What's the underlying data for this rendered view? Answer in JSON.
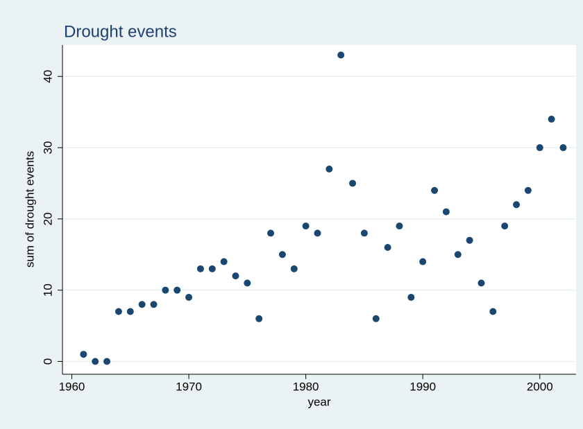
{
  "chart_data": {
    "type": "scatter",
    "title": "Drought events",
    "x_label": "year",
    "y_label": "sum of drought events",
    "color": "#1a476f",
    "grid": true,
    "x": [
      1961,
      1962,
      1963,
      1964,
      1965,
      1966,
      1967,
      1968,
      1969,
      1970,
      1971,
      1972,
      1973,
      1974,
      1975,
      1976,
      1977,
      1978,
      1979,
      1980,
      1981,
      1982,
      1983,
      1984,
      1985,
      1986,
      1987,
      1988,
      1989,
      1990,
      1991,
      1992,
      1993,
      1994,
      1995,
      1996,
      1997,
      1998,
      1999,
      2000,
      2001,
      2002
    ],
    "values": [
      1,
      0,
      0,
      7,
      7,
      8,
      8,
      10,
      10,
      9,
      13,
      13,
      14,
      12,
      11,
      6,
      18,
      15,
      13,
      19,
      18,
      27,
      43,
      25,
      18,
      6,
      16,
      19,
      9,
      14,
      24,
      21,
      15,
      17,
      11,
      7,
      19,
      22,
      24,
      30,
      34,
      30
    ],
    "xlim": [
      1959.2,
      2003.1
    ],
    "ylim": [
      -1.8,
      44.4
    ],
    "xticks": [
      1960,
      1970,
      1980,
      1990,
      2000
    ],
    "yticks": [
      0,
      10,
      20,
      30,
      40
    ]
  }
}
